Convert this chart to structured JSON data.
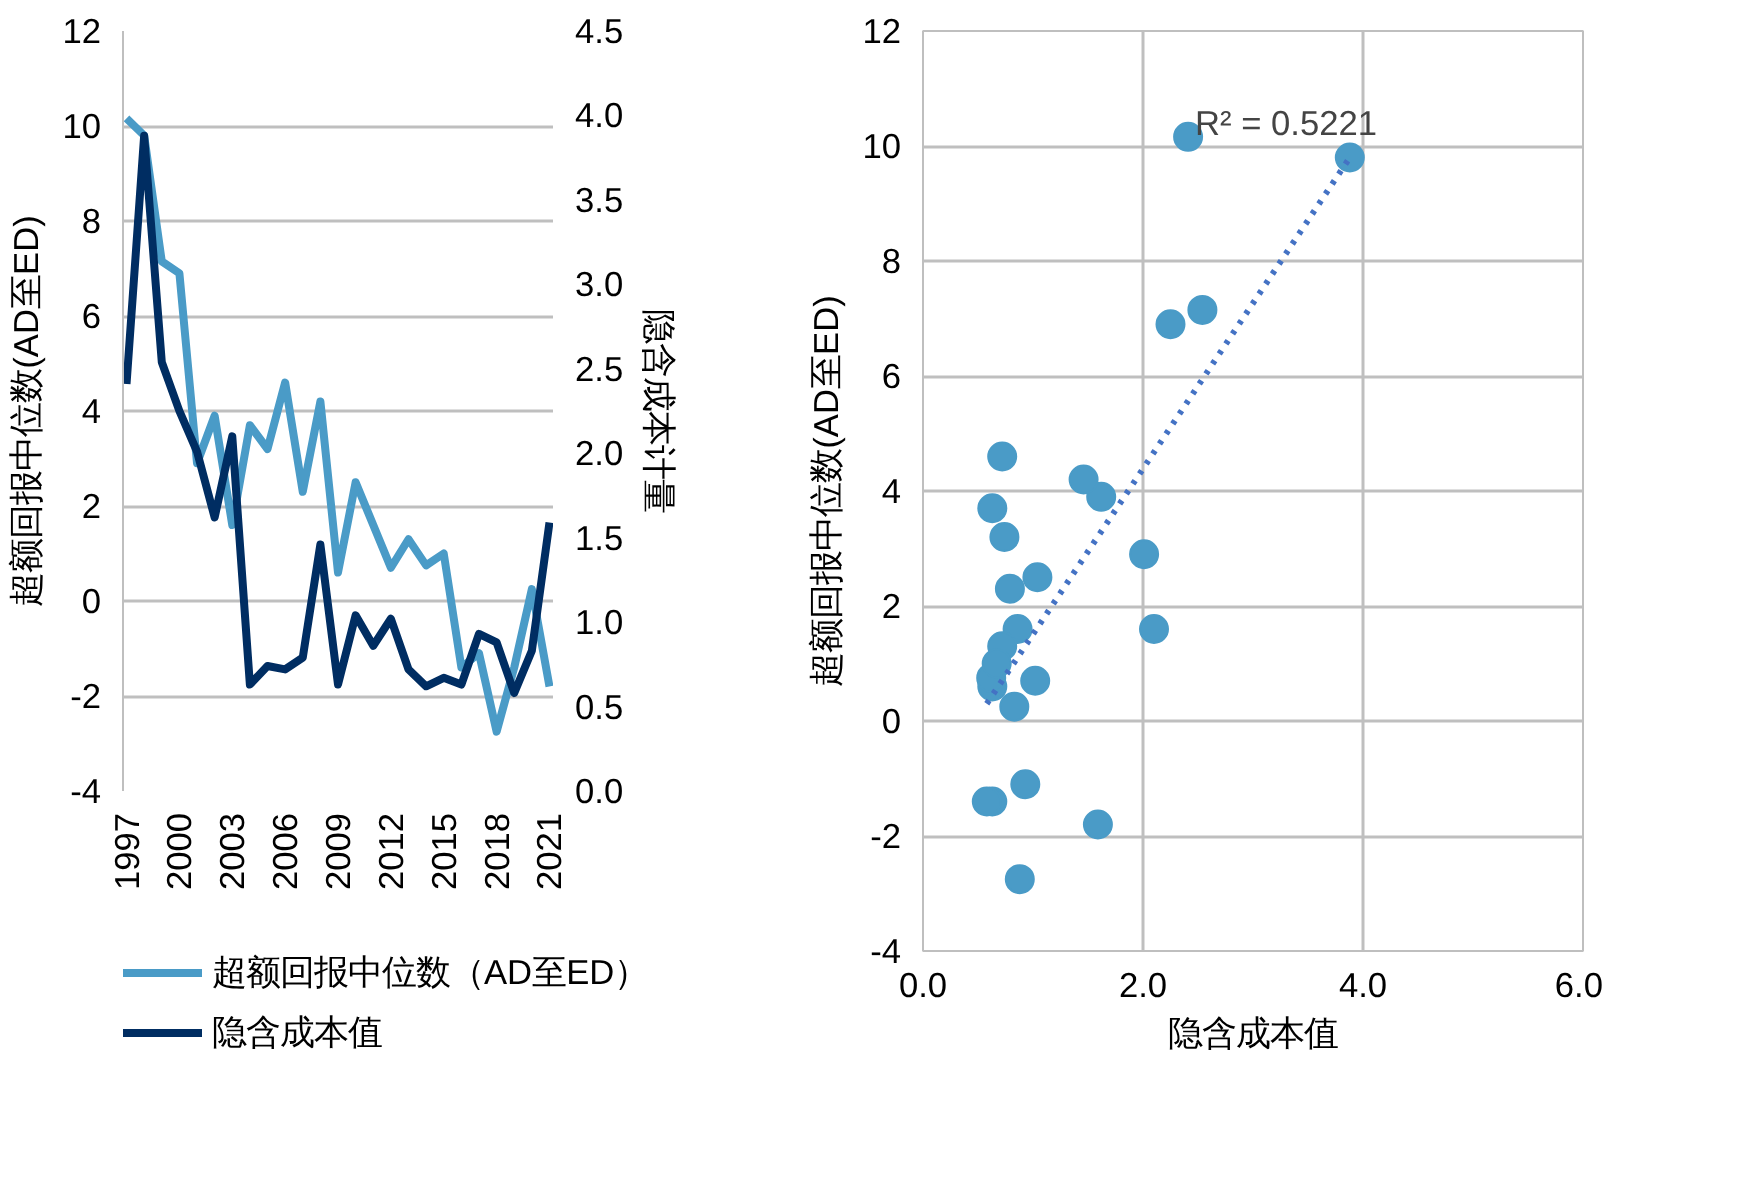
{
  "chart_data": [
    {
      "type": "line",
      "ylabel": "超额回报中位数(AD至ED)",
      "y2label": "隐含成本计量",
      "x": [
        1997,
        1998,
        1999,
        2000,
        2001,
        2002,
        2003,
        2004,
        2005,
        2006,
        2007,
        2008,
        2009,
        2010,
        2011,
        2012,
        2013,
        2014,
        2015,
        2016,
        2017,
        2018,
        2019,
        2020,
        2021
      ],
      "xlim": [
        1996.8,
        2021.2
      ],
      "xticks": [
        1997,
        2000,
        2003,
        2006,
        2009,
        2012,
        2015,
        2018,
        2021
      ],
      "ylim": [
        -4,
        12
      ],
      "yticks": [
        -4,
        -2,
        0,
        2,
        4,
        6,
        8,
        10,
        12
      ],
      "y2lim": [
        0,
        4.5
      ],
      "y2ticks": [
        {
          "value": 0,
          "label": "0.0"
        },
        {
          "value": 0.5,
          "label": "0.5"
        },
        {
          "value": 1,
          "label": "1.0"
        },
        {
          "value": 1.5,
          "label": "1.5"
        },
        {
          "value": 2,
          "label": "2.0"
        },
        {
          "value": 2.5,
          "label": "2.5"
        },
        {
          "value": 3,
          "label": "3.0"
        },
        {
          "value": 3.5,
          "label": "3.5"
        },
        {
          "value": 4,
          "label": "4.0"
        },
        {
          "value": 4.5,
          "label": "4.5"
        }
      ],
      "grid": "y",
      "legend": "bottom",
      "line_style": "solid",
      "series": [
        {
          "name": "超额回报中位数（AD至ED）",
          "color": "#4a9bc7",
          "values": [
            10.16,
            9.8,
            7.15,
            6.9,
            2.9,
            3.9,
            1.6,
            3.7,
            3.2,
            4.6,
            2.3,
            4.2,
            0.6,
            2.5,
            1.6,
            0.7,
            1.3,
            0.75,
            1.0,
            -1.4,
            -1.1,
            -2.75,
            -1.4,
            0.25,
            -1.8
          ]
        },
        {
          "name": "隐含成本值",
          "color": "#002d62",
          "axis": "y2",
          "values": [
            2.41,
            3.88,
            2.54,
            2.25,
            2.01,
            1.62,
            2.1,
            0.63,
            0.74,
            0.72,
            0.79,
            1.46,
            0.63,
            1.04,
            0.86,
            1.02,
            0.72,
            0.62,
            0.67,
            0.63,
            0.93,
            0.88,
            0.58,
            0.83,
            1.59
          ]
        }
      ]
    },
    {
      "type": "scatter",
      "xlabel": "隐含成本值",
      "ylabel": "超额回报中位数(AD至ED)",
      "xlim": [
        0,
        6
      ],
      "xticks": [
        {
          "value": 0,
          "label": "0.0"
        },
        {
          "value": 2,
          "label": "2.0"
        },
        {
          "value": 4,
          "label": "4.0"
        },
        {
          "value": 6,
          "label": "6.0"
        }
      ],
      "ylim": [
        -4,
        12
      ],
      "yticks": [
        -4,
        -2,
        0,
        2,
        4,
        6,
        8,
        10,
        12
      ],
      "grid": true,
      "marker": "circle",
      "annotations": [
        "R² = 0.5221"
      ],
      "series": [
        {
          "color": "#4a9bc7",
          "x": [
            2.41,
            3.88,
            2.54,
            2.25,
            2.01,
            1.62,
            2.1,
            0.63,
            0.74,
            0.72,
            0.79,
            1.46,
            0.63,
            1.04,
            0.86,
            1.02,
            0.72,
            0.62,
            0.67,
            0.63,
            0.93,
            0.88,
            0.58,
            0.83,
            1.59
          ],
          "values": [
            10.16,
            9.8,
            7.15,
            6.9,
            2.9,
            3.9,
            1.6,
            3.7,
            3.2,
            4.6,
            2.3,
            4.2,
            0.6,
            2.5,
            1.6,
            0.7,
            1.3,
            0.75,
            1.0,
            -1.4,
            -1.1,
            -2.75,
            -1.4,
            0.25,
            -1.8
          ]
        },
        {
          "type": "line",
          "color": "#4472c4",
          "line_style": "dotted",
          "marker": "none",
          "x": [
            0.58,
            3.88
          ],
          "values": [
            0.3,
            9.8
          ]
        }
      ]
    }
  ]
}
